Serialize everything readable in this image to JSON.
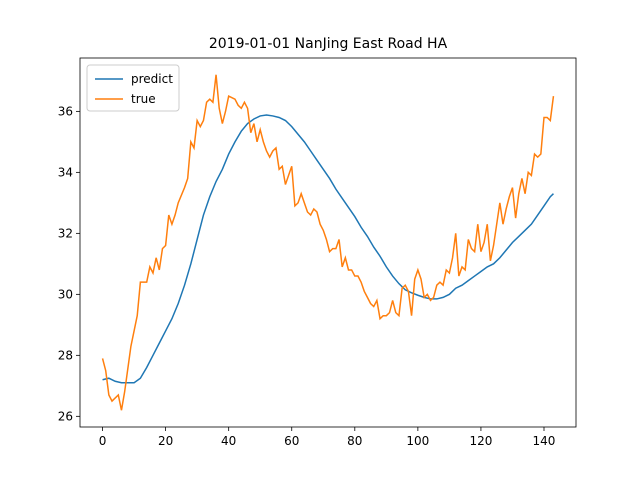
{
  "chart_data": {
    "type": "line",
    "title": "2019-01-01 NanJing East Road HA",
    "xlim": [
      -7.15,
      150.15
    ],
    "ylim": [
      25.65,
      37.75
    ],
    "xticks": [
      0,
      20,
      40,
      60,
      80,
      100,
      120,
      140
    ],
    "yticks": [
      26,
      28,
      30,
      32,
      34,
      36
    ],
    "legend": "upper left",
    "series": [
      {
        "name": "predict",
        "color": "#1f77b4",
        "x": [
          0,
          2,
          4,
          6,
          8,
          10,
          12,
          14,
          16,
          18,
          20,
          22,
          24,
          26,
          28,
          30,
          32,
          34,
          36,
          38,
          40,
          42,
          44,
          46,
          48,
          50,
          52,
          54,
          56,
          58,
          60,
          62,
          64,
          66,
          68,
          70,
          72,
          74,
          76,
          78,
          80,
          82,
          84,
          86,
          88,
          90,
          92,
          94,
          96,
          98,
          100,
          102,
          104,
          106,
          108,
          110,
          112,
          114,
          116,
          118,
          120,
          122,
          124,
          126,
          128,
          130,
          132,
          134,
          136,
          138,
          140,
          142,
          143
        ],
        "values": [
          27.2,
          27.25,
          27.15,
          27.1,
          27.1,
          27.1,
          27.25,
          27.6,
          28.0,
          28.4,
          28.8,
          29.2,
          29.7,
          30.3,
          31.0,
          31.8,
          32.6,
          33.2,
          33.7,
          34.1,
          34.6,
          35.0,
          35.35,
          35.6,
          35.75,
          35.85,
          35.88,
          35.85,
          35.8,
          35.7,
          35.5,
          35.25,
          35.0,
          34.7,
          34.4,
          34.1,
          33.8,
          33.45,
          33.15,
          32.85,
          32.55,
          32.2,
          31.9,
          31.55,
          31.25,
          30.9,
          30.6,
          30.35,
          30.15,
          30.05,
          29.97,
          29.9,
          29.85,
          29.85,
          29.9,
          30.0,
          30.2,
          30.3,
          30.45,
          30.6,
          30.75,
          30.9,
          31.0,
          31.2,
          31.45,
          31.7,
          31.9,
          32.1,
          32.3,
          32.6,
          32.9,
          33.2,
          33.3
        ]
      },
      {
        "name": "true",
        "color": "#ff7f0e",
        "x": [
          0,
          1,
          2,
          3,
          5,
          6,
          7,
          9,
          11,
          12,
          14,
          15,
          16,
          17,
          18,
          19,
          20,
          21,
          22,
          23,
          24,
          26,
          27,
          28,
          29,
          30,
          31,
          32,
          33,
          34,
          35,
          36,
          37,
          38,
          39,
          40,
          42,
          43,
          44,
          45,
          46,
          47,
          48,
          49,
          50,
          51,
          52,
          53,
          54,
          55,
          56,
          57,
          58,
          59,
          60,
          61,
          62,
          63,
          64,
          65,
          66,
          67,
          68,
          69,
          70,
          71,
          72,
          73,
          74,
          75,
          76,
          77,
          78,
          79,
          80,
          81,
          82,
          83,
          84,
          85,
          86,
          87,
          88,
          89,
          90,
          91,
          92,
          93,
          94,
          95,
          96,
          97,
          98,
          99,
          100,
          101,
          102,
          103,
          104,
          105,
          106,
          107,
          108,
          109,
          110,
          111,
          112,
          113,
          114,
          115,
          116,
          117,
          118,
          119,
          120,
          121,
          122,
          123,
          124,
          125,
          126,
          127,
          128,
          129,
          130,
          131,
          132,
          133,
          134,
          135,
          136,
          137,
          138,
          139,
          140,
          141,
          142,
          143
        ],
        "values": [
          27.9,
          27.5,
          26.7,
          26.5,
          26.7,
          26.2,
          26.8,
          28.3,
          29.3,
          30.4,
          30.4,
          30.9,
          30.7,
          31.2,
          30.8,
          31.5,
          31.6,
          32.6,
          32.3,
          32.6,
          33.0,
          33.5,
          33.8,
          35.0,
          34.8,
          35.7,
          35.5,
          35.7,
          36.3,
          36.4,
          36.3,
          37.2,
          36.1,
          35.6,
          36.0,
          36.5,
          36.4,
          36.2,
          36.1,
          36.3,
          36.1,
          35.3,
          35.6,
          35.0,
          35.4,
          35.0,
          34.7,
          34.5,
          34.7,
          34.8,
          34.1,
          34.2,
          33.6,
          33.9,
          34.2,
          32.9,
          33.0,
          33.3,
          33.0,
          32.7,
          32.6,
          32.8,
          32.7,
          32.3,
          32.1,
          31.8,
          31.4,
          31.5,
          31.5,
          31.8,
          30.9,
          31.2,
          30.8,
          30.8,
          30.6,
          30.6,
          30.4,
          30.1,
          29.9,
          29.7,
          29.6,
          29.8,
          29.2,
          29.3,
          29.3,
          29.4,
          29.8,
          29.4,
          29.3,
          30.2,
          30.3,
          30.1,
          29.3,
          30.5,
          30.8,
          30.5,
          29.9,
          30.0,
          29.8,
          29.9,
          30.3,
          30.4,
          30.3,
          30.8,
          30.7,
          31.2,
          32.0,
          30.6,
          30.9,
          30.8,
          31.8,
          31.5,
          31.4,
          32.3,
          31.4,
          31.7,
          32.3,
          31.1,
          31.6,
          32.3,
          33.0,
          32.3,
          32.8,
          33.2,
          33.5,
          32.5,
          33.3,
          33.8,
          33.3,
          34.0,
          33.9,
          34.6,
          34.5,
          34.6,
          35.8,
          35.8,
          35.7,
          36.5
        ]
      }
    ]
  }
}
